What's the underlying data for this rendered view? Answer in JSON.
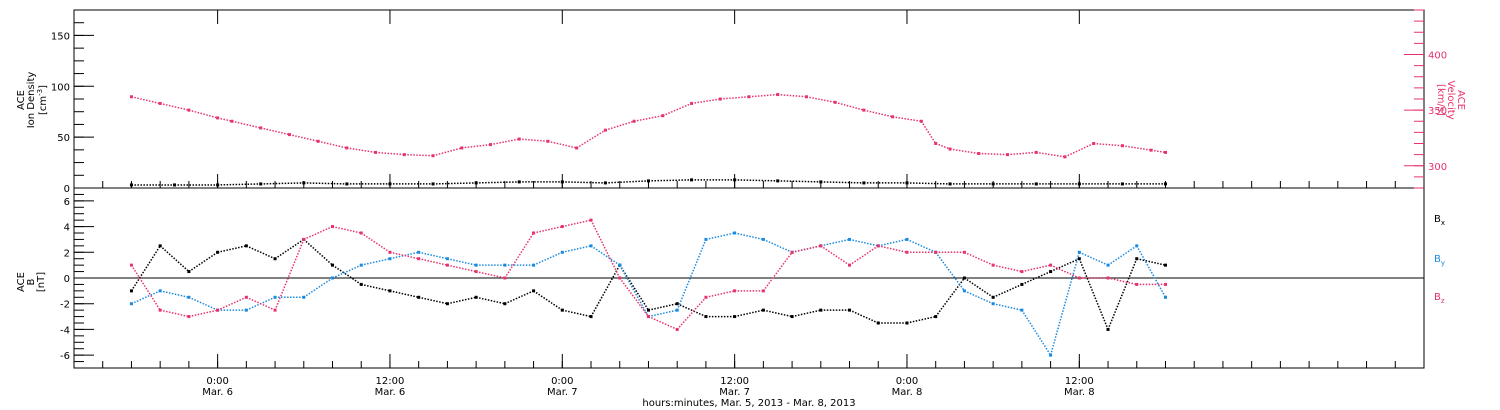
{
  "colors": {
    "black": "#000000",
    "pink": "#e8336a",
    "blue": "#1b8be0"
  },
  "chart_data": [
    {
      "type": "scatter",
      "title": "",
      "ylabel_lines": [
        "ACE",
        "Ion Density"
      ],
      "yunit_prefix": "[cm",
      "yunit_sup": "-3",
      "yunit_suffix": "]",
      "ylabel2_lines": [
        "ACE",
        "Velocity"
      ],
      "y2unit": "[km/s]",
      "ylim": [
        0,
        175
      ],
      "y2lim": [
        280,
        440
      ],
      "yticks": [
        0,
        50,
        100,
        150
      ],
      "y2ticks": [
        300,
        350,
        400
      ],
      "series": [
        {
          "color_key": "black",
          "axis": "left",
          "x": [
            -6,
            -3,
            0,
            3,
            6,
            9,
            12,
            15,
            18,
            21,
            24,
            27,
            30,
            33,
            36,
            39,
            42,
            45,
            48,
            51,
            54,
            57,
            60,
            63,
            66
          ],
          "y": [
            3,
            3,
            3,
            4,
            5,
            4,
            4,
            4,
            5,
            6,
            6,
            5,
            7,
            8,
            8,
            7,
            6,
            5,
            5,
            4,
            4,
            4,
            4,
            4,
            4
          ]
        },
        {
          "color_key": "pink",
          "axis": "right",
          "x": [
            -6,
            -4,
            -2,
            0,
            1,
            3,
            5,
            7,
            9,
            11,
            13,
            15,
            17,
            19,
            21,
            23,
            25,
            27,
            29,
            31,
            33,
            35,
            37,
            39,
            41,
            43,
            45,
            47,
            49,
            50,
            51,
            53,
            55,
            57,
            59,
            61,
            63,
            65,
            66
          ],
          "y": [
            362,
            356,
            350,
            343,
            340,
            334,
            328,
            322,
            316,
            312,
            310,
            309,
            316,
            319,
            324,
            322,
            316,
            332,
            340,
            345,
            356,
            360,
            362,
            364,
            362,
            357,
            350,
            344,
            340,
            320,
            315,
            311,
            310,
            312,
            308,
            320,
            318,
            314,
            312
          ]
        }
      ]
    },
    {
      "type": "scatter",
      "title": "",
      "ylabel_lines": [
        "ACE",
        "B"
      ],
      "yunit": "[nT]",
      "ylim": [
        -7,
        7
      ],
      "yticks": [
        -6,
        -4,
        -2,
        0,
        2,
        4,
        6
      ],
      "legend": [
        {
          "label": "B",
          "sub": "x",
          "color_key": "black"
        },
        {
          "label": "B",
          "sub": "y",
          "color_key": "blue"
        },
        {
          "label": "B",
          "sub": "z",
          "color_key": "pink"
        }
      ],
      "series": [
        {
          "color_key": "black",
          "x": [
            -6,
            -4,
            -2,
            0,
            2,
            4,
            6,
            8,
            10,
            12,
            14,
            16,
            18,
            20,
            22,
            24,
            26,
            28,
            30,
            32,
            34,
            36,
            38,
            40,
            42,
            44,
            46,
            48,
            50,
            52,
            54,
            56,
            58,
            60,
            62,
            64,
            66
          ],
          "y": [
            -1,
            2.5,
            0.5,
            2,
            2.5,
            1.5,
            3,
            1,
            -0.5,
            -1,
            -1.5,
            -2,
            -1.5,
            -2,
            -1,
            -2.5,
            -3,
            1,
            -2.5,
            -2,
            -3,
            -3,
            -2.5,
            -3,
            -2.5,
            -2.5,
            -3.5,
            -3.5,
            -3,
            0,
            -1.5,
            -0.5,
            0.5,
            1.5,
            -4,
            1.5,
            1
          ]
        },
        {
          "color_key": "blue",
          "x": [
            -6,
            -4,
            -2,
            0,
            2,
            4,
            6,
            8,
            10,
            12,
            14,
            16,
            18,
            20,
            22,
            24,
            26,
            28,
            30,
            32,
            34,
            36,
            38,
            40,
            42,
            44,
            46,
            48,
            50,
            52,
            54,
            56,
            58,
            60,
            62,
            64,
            66
          ],
          "y": [
            -2,
            -1,
            -1.5,
            -2.5,
            -2.5,
            -1.5,
            -1.5,
            0,
            1,
            1.5,
            2,
            1.5,
            1,
            1,
            1,
            2,
            2.5,
            1,
            -3,
            -2.5,
            3,
            3.5,
            3,
            2,
            2.5,
            3,
            2.5,
            3,
            2,
            -1,
            -2,
            -2.5,
            -6,
            2,
            1,
            2.5,
            -1.5
          ]
        },
        {
          "color_key": "pink",
          "x": [
            -6,
            -4,
            -2,
            0,
            2,
            4,
            6,
            8,
            10,
            12,
            14,
            16,
            18,
            20,
            22,
            24,
            26,
            28,
            30,
            32,
            34,
            36,
            38,
            40,
            42,
            44,
            46,
            48,
            50,
            52,
            54,
            56,
            58,
            60,
            62,
            64,
            66
          ],
          "y": [
            1,
            -2.5,
            -3,
            -2.5,
            -1.5,
            -2.5,
            3,
            4,
            3.5,
            2,
            1.5,
            1,
            0.5,
            0,
            3.5,
            4,
            4.5,
            0,
            -3,
            -4,
            -1.5,
            -1,
            -1,
            2,
            2.5,
            1,
            2.5,
            2,
            2,
            2,
            1,
            0.5,
            1,
            0,
            0,
            -0.5,
            -0.5
          ]
        }
      ]
    }
  ],
  "x_axis": {
    "xlim": [
      -10,
      84
    ],
    "ticks": [
      {
        "x": 0,
        "time": "0:00",
        "date": "Mar. 6"
      },
      {
        "x": 12,
        "time": "12:00",
        "date": "Mar. 6"
      },
      {
        "x": 24,
        "time": "0:00",
        "date": "Mar. 7"
      },
      {
        "x": 36,
        "time": "12:00",
        "date": "Mar. 7"
      },
      {
        "x": 48,
        "time": "0:00",
        "date": "Mar. 8"
      },
      {
        "x": 60,
        "time": "12:00",
        "date": "Mar. 8"
      }
    ],
    "xlabel": "hours:minutes, Mar. 5, 2013 - Mar. 8, 2013"
  }
}
